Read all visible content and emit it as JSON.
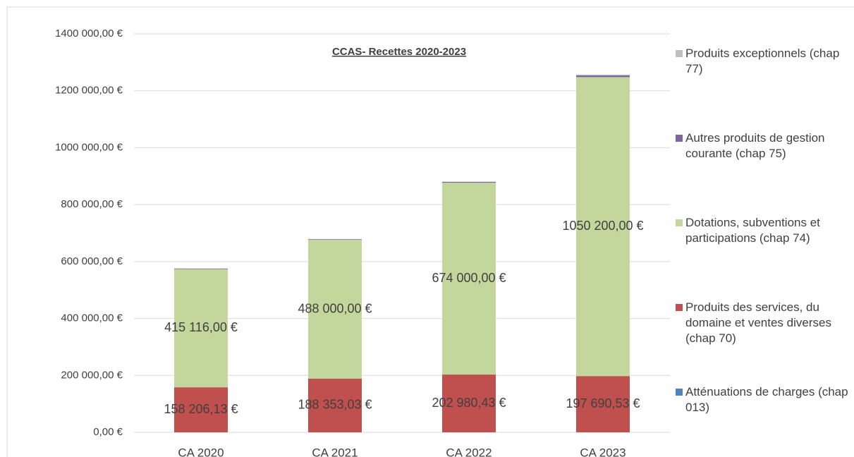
{
  "chart_data": {
    "type": "stacked_bar",
    "title": "CCAS- Recettes 2020-2023",
    "categories": [
      "CA 2020",
      "CA 2021",
      "CA 2022",
      "CA 2023"
    ],
    "series": [
      {
        "name": "Atténuations de charges (chap 013)",
        "color": "#4f81bd",
        "values": [
          0,
          0,
          0,
          0
        ]
      },
      {
        "name": "Produits des services, du domaine et ventes diverses (chap 70)",
        "color": "#c0504d",
        "values": [
          158206.13,
          188353.03,
          202980.43,
          197690.53
        ],
        "value_labels": [
          "158 206,13 €",
          "188 353,03 €",
          "202 980,43 €",
          "197 690,53 €"
        ]
      },
      {
        "name": "Dotations, subventions et participations (chap 74)",
        "color": "#c3d69b",
        "values": [
          415116,
          488000,
          674000,
          1050200
        ],
        "value_labels": [
          "415 116,00 €",
          "488 000,00 €",
          "674 000,00 €",
          "1050 200,00 €"
        ]
      },
      {
        "name": "Autres produits de gestion courante (chap 75)",
        "color": "#8064a2",
        "values": [
          2000,
          2000,
          3000,
          6000
        ]
      },
      {
        "name": "Produits exceptionnels (chap 77)",
        "color": "#bfbfbf",
        "values": [
          1000,
          1000,
          1000,
          3000
        ]
      }
    ],
    "ylim": [
      0,
      1400000
    ],
    "yticks": [
      {
        "value": 0,
        "label": "0,00 €"
      },
      {
        "value": 200000,
        "label": "200 000,00 €"
      },
      {
        "value": 400000,
        "label": "400 000,00 €"
      },
      {
        "value": 600000,
        "label": "600 000,00 €"
      },
      {
        "value": 800000,
        "label": "800 000,00 €"
      },
      {
        "value": 1000000,
        "label": "1000 000,00 €"
      },
      {
        "value": 1200000,
        "label": "1200 000,00 €"
      },
      {
        "value": 1400000,
        "label": "1400 000,00 €"
      }
    ],
    "grid": true,
    "legend": "right"
  }
}
